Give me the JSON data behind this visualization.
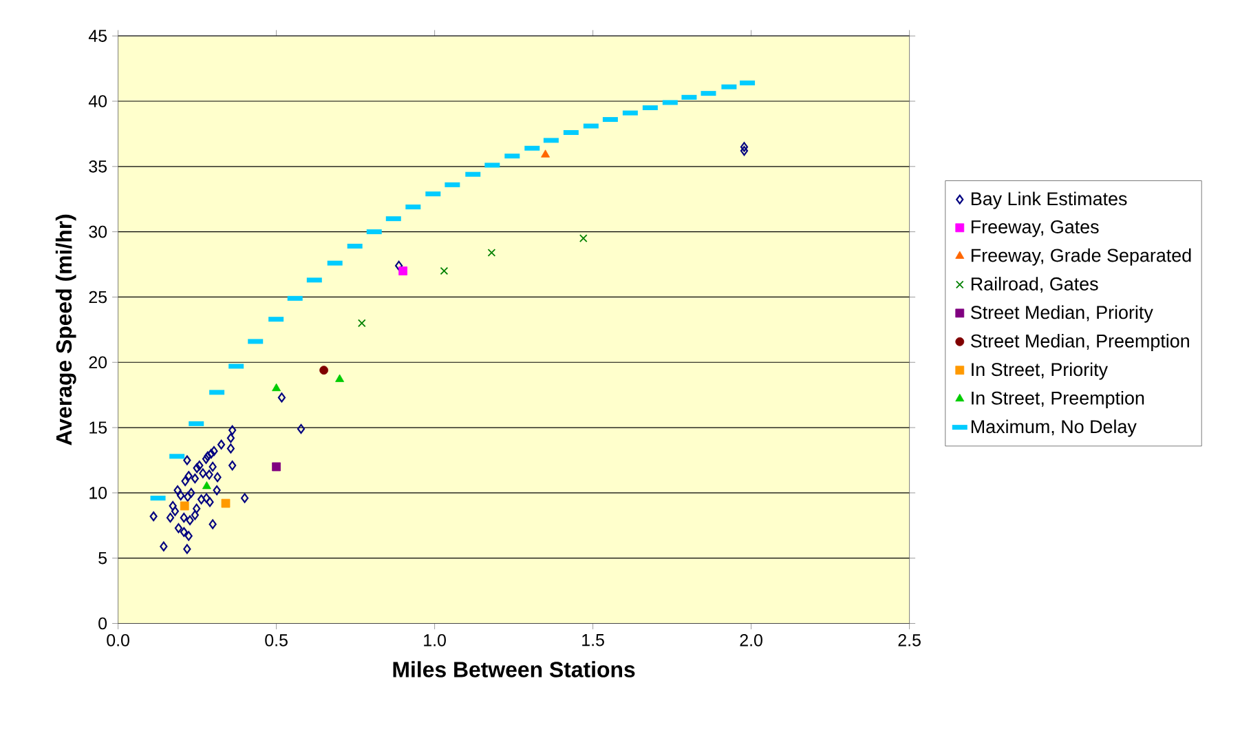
{
  "chart_data": {
    "type": "scatter",
    "xlabel": "Miles Between Stations",
    "ylabel": "Average Speed (mi/hr)",
    "xlim": [
      0,
      2.5
    ],
    "ylim": [
      0,
      45
    ],
    "xticks": [
      {
        "value": 0,
        "label": "0.0"
      },
      0.5,
      {
        "value": 1,
        "label": "1.0"
      },
      1.5,
      {
        "value": 2,
        "label": "2.0"
      },
      2.5
    ],
    "yticks": [
      0,
      5,
      10,
      15,
      20,
      25,
      30,
      35,
      40,
      45
    ],
    "grid": "y",
    "legend": "right",
    "series": [
      {
        "name": "Bay Link Estimates",
        "color": "#000080",
        "marker": "diamond",
        "x": [
          0.517,
          0.578,
          0.361,
          0.356,
          0.326,
          0.356,
          0.303,
          0.294,
          0.283,
          0.278,
          0.218,
          0.361,
          0.299,
          0.257,
          0.249,
          0.268,
          0.288,
          0.314,
          0.223,
          0.243,
          0.212,
          0.188,
          0.231,
          0.312,
          0.198,
          0.22,
          0.263,
          0.279,
          0.29,
          0.4,
          0.173,
          0.248,
          0.18,
          0.112,
          0.165,
          0.243,
          0.208,
          0.227,
          0.299,
          0.191,
          0.208,
          0.223,
          0.144,
          0.218,
          0.887,
          1.978,
          1.978
        ],
        "values": [
          17.3,
          14.9,
          14.8,
          14.2,
          13.7,
          13.4,
          13.2,
          13.0,
          12.8,
          12.6,
          12.5,
          12.1,
          12.0,
          12.1,
          11.9,
          11.5,
          11.4,
          11.2,
          11.3,
          11.1,
          10.9,
          10.2,
          10.0,
          10.2,
          9.8,
          9.7,
          9.5,
          9.6,
          9.3,
          9.6,
          9.0,
          8.8,
          8.6,
          8.2,
          8.1,
          8.3,
          8.1,
          7.9,
          7.6,
          7.3,
          7.0,
          6.7,
          5.9,
          5.7,
          27.4,
          36.5,
          36.2
        ]
      },
      {
        "name": "Freeway, Gates",
        "color": "#ff00ff",
        "marker": "square",
        "x": [
          0.9
        ],
        "values": [
          27.0
        ]
      },
      {
        "name": "Freeway, Grade Separated",
        "color": "#ff6600",
        "marker": "triangle",
        "x": [
          1.35
        ],
        "values": [
          35.9
        ]
      },
      {
        "name": "Railroad, Gates",
        "color": "#008000",
        "marker": "cross",
        "x": [
          0.77,
          1.03,
          1.18,
          1.47
        ],
        "values": [
          23.0,
          27.0,
          28.4,
          29.5
        ]
      },
      {
        "name": "Street Median, Priority",
        "color": "#800080",
        "marker": "square",
        "x": [
          0.5
        ],
        "values": [
          12.0
        ]
      },
      {
        "name": "Street Median, Preemption",
        "color": "#800000",
        "marker": "circle",
        "x": [
          0.65
        ],
        "values": [
          19.4
        ]
      },
      {
        "name": "In Street, Priority",
        "color": "#ff9900",
        "marker": "square",
        "x": [
          0.21,
          0.34
        ],
        "values": [
          9.0,
          9.2
        ]
      },
      {
        "name": "In Street, Preemption",
        "color": "#00cc00",
        "marker": "triangle",
        "x": [
          0.5,
          0.7,
          0.28
        ],
        "values": [
          18.0,
          18.7,
          10.5
        ]
      },
      {
        "name": "Maximum, No Delay",
        "color": "#00ccff",
        "x": [
          0.126,
          0.186,
          0.247,
          0.312,
          0.373,
          0.434,
          0.499,
          0.559,
          0.62,
          0.685,
          0.748,
          0.809,
          0.87,
          0.932,
          0.995,
          1.056,
          1.121,
          1.182,
          1.245,
          1.308,
          1.368,
          1.431,
          1.494,
          1.555,
          1.618,
          1.681,
          1.744,
          1.804,
          1.865,
          1.93,
          1.988
        ],
        "values": [
          9.6,
          12.8,
          15.3,
          17.7,
          19.7,
          21.6,
          23.3,
          24.9,
          26.3,
          27.6,
          28.9,
          30.0,
          31.0,
          31.9,
          32.9,
          33.6,
          34.4,
          35.1,
          35.8,
          36.4,
          37.0,
          37.6,
          38.1,
          38.6,
          39.1,
          39.5,
          39.9,
          40.3,
          40.6,
          41.1,
          41.4
        ]
      }
    ]
  }
}
